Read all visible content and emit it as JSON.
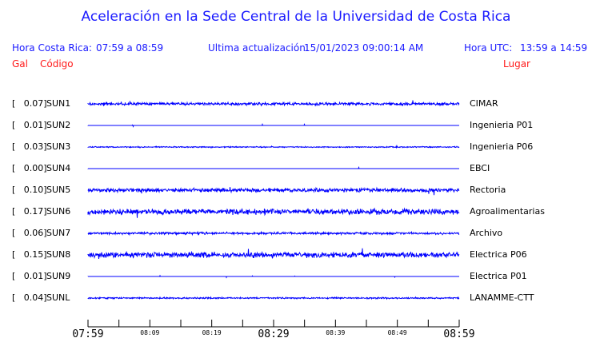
{
  "header": {
    "title": "Aceleración en la Sede Central de la Universidad de Costa Rica",
    "local_label": "Hora Costa Rica:",
    "local_range": "07:59 a 08:59",
    "update_label": "Ultima actualización:",
    "update_value": "15/01/2023 09:00:14 AM",
    "utc_label": "Hora UTC:",
    "utc_range": "13:59 a 14:59",
    "col_gal": "Gal",
    "col_code": "Código",
    "col_place": "Lugar"
  },
  "colors": {
    "trace": "#0000ff",
    "header": "#1a1aff",
    "column_headers": "#ff1a1a"
  },
  "chart_data": {
    "type": "line",
    "title": "Aceleración en la Sede Central de la Universidad de Costa Rica",
    "x_ticks_major": [
      "07:59",
      "08:29",
      "08:59"
    ],
    "x_ticks_minor": [
      "08:09",
      "08:19",
      "08:39",
      "08:49"
    ],
    "x_range": [
      "07:59",
      "08:59"
    ],
    "series": [
      {
        "gal": "[   0.07]",
        "code": "SUN1",
        "place": "CIMAR",
        "pga": 0.07
      },
      {
        "gal": "[   0.01]",
        "code": "SUN2",
        "place": "Ingenieria P01",
        "pga": 0.01
      },
      {
        "gal": "[   0.03]",
        "code": "SUN3",
        "place": "Ingenieria P06",
        "pga": 0.03
      },
      {
        "gal": "[   0.00]",
        "code": "SUN4",
        "place": "EBCI",
        "pga": 0.0
      },
      {
        "gal": "[   0.10]",
        "code": "SUN5",
        "place": "Rectoria",
        "pga": 0.1
      },
      {
        "gal": "[   0.17]",
        "code": "SUN6",
        "place": "Agroalimentarias",
        "pga": 0.17
      },
      {
        "gal": "[   0.06]",
        "code": "SUN7",
        "place": "Archivo",
        "pga": 0.06
      },
      {
        "gal": "[   0.15]",
        "code": "SUN8",
        "place": "Electrica P06",
        "pga": 0.15
      },
      {
        "gal": "[   0.01]",
        "code": "SUN9",
        "place": "Electrica P01",
        "pga": 0.01
      },
      {
        "gal": "[   0.04]",
        "code": "SUNL",
        "place": "LANAMME-CTT",
        "pga": 0.04
      }
    ]
  }
}
